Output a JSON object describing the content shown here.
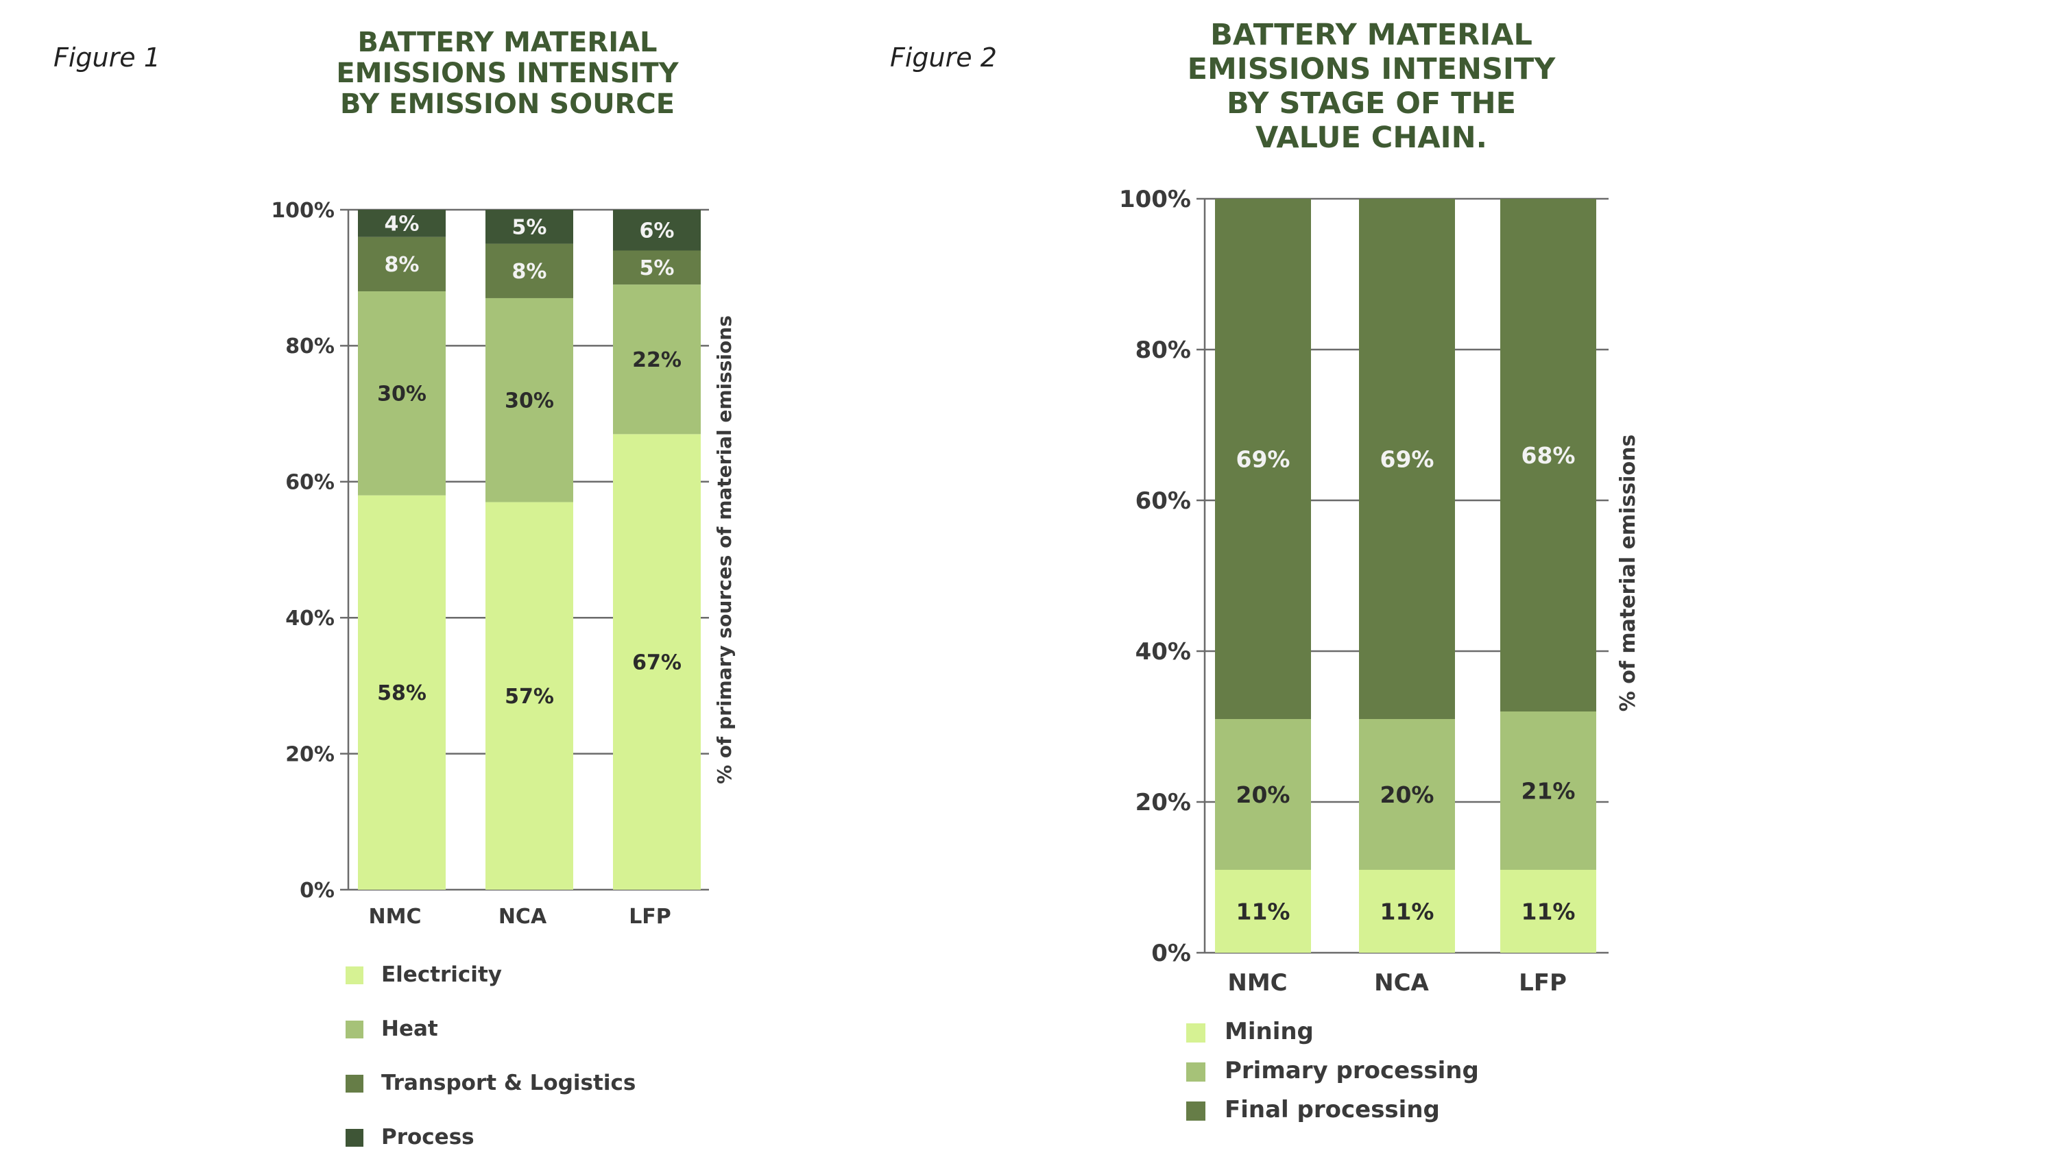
{
  "figures": [
    {
      "label": "Figure 1",
      "title": "BATTERY MATERIAL\nEMISSIONS INTENSITY\nBY EMISSION SOURCE",
      "legend": [
        "Electricity",
        "Heat",
        "Transport & Logistics",
        "Process"
      ]
    },
    {
      "label": "Figure 2",
      "title": "BATTERY MATERIAL\nEMISSIONS INTENSITY\nBY STAGE OF THE\nVALUE CHAIN.",
      "legend": [
        "Mining",
        "Primary processing",
        "Final processing"
      ]
    }
  ],
  "chart_data": [
    {
      "type": "bar",
      "stacked": true,
      "title": "BATTERY MATERIAL EMISSIONS INTENSITY BY EMISSION SOURCE",
      "categories": [
        "NMC",
        "NCA",
        "LFP"
      ],
      "ylabel": "% of primary sources of material emissions",
      "ylim": [
        0,
        100
      ],
      "yticks": [
        "0%",
        "20%",
        "40%",
        "60%",
        "80%",
        "100%"
      ],
      "grid": true,
      "series": [
        {
          "name": "Electricity",
          "color": "#d6f293",
          "values": [
            58,
            57,
            67
          ],
          "labels": [
            "58%",
            "57%",
            "67%"
          ],
          "label_color": "#2b2b2b"
        },
        {
          "name": "Heat",
          "color": "#a6c278",
          "values": [
            30,
            30,
            22
          ],
          "labels": [
            "30%",
            "30%",
            "22%"
          ],
          "label_color": "#2b2b2b"
        },
        {
          "name": "Transport & Logistics",
          "color": "#667d47",
          "values": [
            8,
            8,
            5
          ],
          "labels": [
            "8%",
            "8%",
            "5%"
          ],
          "label_color": "#f2f2f2"
        },
        {
          "name": "Process",
          "color": "#3e5536",
          "values": [
            4,
            5,
            6
          ],
          "labels": [
            "4%",
            "5%",
            "6%"
          ],
          "label_color": "#f2f2f2"
        }
      ]
    },
    {
      "type": "bar",
      "stacked": true,
      "title": "BATTERY MATERIAL EMISSIONS INTENSITY BY STAGE OF THE VALUE CHAIN.",
      "categories": [
        "NMC",
        "NCA",
        "LFP"
      ],
      "ylabel": "% of material emissions",
      "ylim": [
        0,
        100
      ],
      "yticks": [
        "0%",
        "20%",
        "40%",
        "60%",
        "80%",
        "100%"
      ],
      "grid": true,
      "series": [
        {
          "name": "Mining",
          "color": "#d6f293",
          "values": [
            11,
            11,
            11
          ],
          "labels": [
            "11%",
            "11%",
            "11%"
          ],
          "label_color": "#2b2b2b"
        },
        {
          "name": "Primary processing",
          "color": "#a6c278",
          "values": [
            20,
            20,
            21
          ],
          "labels": [
            "20%",
            "20%",
            "21%"
          ],
          "label_color": "#2b2b2b"
        },
        {
          "name": "Final processing",
          "color": "#667d47",
          "values": [
            69,
            69,
            68
          ],
          "labels": [
            "69%",
            "69%",
            "68%"
          ],
          "label_color": "#f2f2f2"
        }
      ]
    }
  ]
}
